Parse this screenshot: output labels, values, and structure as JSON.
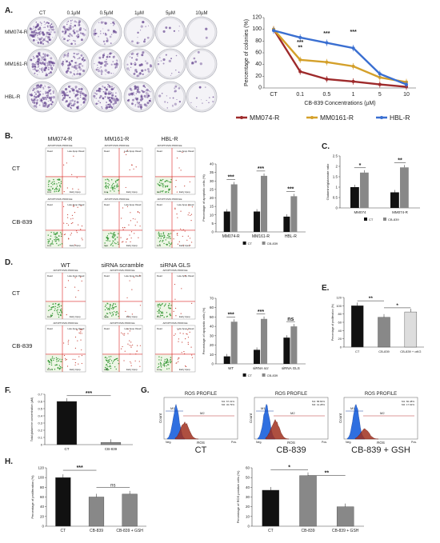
{
  "panels": {
    "A": "A.",
    "B": "B.",
    "C": "C.",
    "D": "D.",
    "E": "E.",
    "F": "F.",
    "G": "G.",
    "H": "H."
  },
  "panelA": {
    "columns": [
      "CT",
      "0.1µM",
      "0.5µM",
      "1µM",
      "5µM",
      "10µM"
    ],
    "rows": [
      "MM074-R",
      "MM161-R",
      "HBL-R"
    ],
    "plate_density": [
      [
        0.95,
        0.55,
        0.3,
        0.12,
        0.05,
        0.02
      ],
      [
        0.95,
        0.55,
        0.45,
        0.35,
        0.12,
        0.05
      ],
      [
        0.9,
        0.8,
        0.75,
        0.6,
        0.15,
        0.1
      ]
    ]
  },
  "chartA": {
    "type": "line",
    "ylabel": "Percentage of colonies (%)",
    "xlabel": "CB-839 Concentrations (µM)",
    "categories": [
      "CT",
      "0.1",
      "0.5",
      "1",
      "5",
      "10"
    ],
    "ylim": [
      0,
      120
    ],
    "yticks": [
      "0",
      "20",
      "40",
      "60",
      "80",
      "100",
      "120"
    ],
    "series": [
      {
        "name": "MM074-R",
        "color": "#9e2a2b",
        "values": [
          100,
          28,
          15,
          11,
          6,
          2
        ]
      },
      {
        "name": "MM0161-R",
        "color": "#d4a02a",
        "values": [
          100,
          48,
          44,
          37,
          18,
          10
        ]
      },
      {
        "name": "HBL-R",
        "color": "#3a6fd1",
        "values": [
          98,
          86,
          77,
          68,
          24,
          6
        ]
      }
    ],
    "stars": [
      "***",
      "**",
      "***",
      "***"
    ]
  },
  "panelB": {
    "columns": [
      "MM074-R",
      "MM161-R",
      "HBL-R"
    ],
    "rows": [
      "CT",
      "CB-839"
    ],
    "profile_title": "APOPTOSIS PROFILE",
    "q_dead": "Dead",
    "q_late": "Late Apop./Dead",
    "q_live": "Live",
    "q_early": "Early Apop.",
    "axis_x": "ANNEXIN V",
    "axis_y": "VIABILITY"
  },
  "chartB": {
    "type": "bar",
    "ylabel": "Percentage of apoptotic cells (%)",
    "categories": [
      "MM074-R",
      "MM161-R",
      "HBL-R"
    ],
    "ylim": [
      0,
      40
    ],
    "yticks": [
      "0",
      "5",
      "10",
      "15",
      "20",
      "25",
      "30",
      "35",
      "40"
    ],
    "series": [
      {
        "name": "CT",
        "color": "#111111",
        "values": [
          12,
          12,
          9
        ]
      },
      {
        "name": "CB-839",
        "color": "#888888",
        "values": [
          28,
          33,
          21
        ]
      }
    ],
    "stars": [
      "***",
      "***",
      "***"
    ]
  },
  "chartC": {
    "type": "bar",
    "ylabel": "Glutamine/glutamate ratio",
    "categories": [
      "MM074",
      "MM074-R"
    ],
    "ylim": [
      0,
      2.5
    ],
    "yticks": [
      "0",
      "0.5",
      "1",
      "1.5",
      "2",
      "2.5"
    ],
    "series": [
      {
        "name": "CT",
        "color": "#111111",
        "values": [
          1.0,
          0.75
        ]
      },
      {
        "name": "CB-839",
        "color": "#888888",
        "values": [
          1.7,
          1.95
        ]
      }
    ],
    "stars": [
      "*",
      "**"
    ]
  },
  "panelD": {
    "columns": [
      "WT",
      "siRNA scramble",
      "siRNA GLS"
    ],
    "rows": [
      "CT",
      "CB-839"
    ]
  },
  "chartD": {
    "type": "bar",
    "ylabel": "Percentage of apoptotic cells (%)",
    "categories": [
      "WT",
      "siRNA scr",
      "siRNA GLS"
    ],
    "ylim": [
      0,
      70
    ],
    "yticks": [
      "0",
      "10",
      "20",
      "30",
      "40",
      "50",
      "60",
      "70"
    ],
    "series": [
      {
        "name": "CT",
        "color": "#111111",
        "values": [
          8,
          15,
          28
        ]
      },
      {
        "name": "CB-839",
        "color": "#888888",
        "values": [
          45,
          48,
          40
        ]
      }
    ],
    "stars": [
      "***",
      "***",
      "ns"
    ]
  },
  "chartE": {
    "type": "bar",
    "ylabel": "Percentage of proliferation (%)",
    "categories": [
      "CT",
      "CB-839",
      "CB-839 + αKG"
    ],
    "ylim": [
      0,
      120
    ],
    "yticks": [
      "0",
      "20",
      "40",
      "60",
      "80",
      "100",
      "120"
    ],
    "values": [
      100,
      72,
      85
    ],
    "colors": [
      "#111111",
      "#888888",
      "#dddddd"
    ],
    "stars": [
      "**",
      "*"
    ]
  },
  "chartF": {
    "type": "bar",
    "ylabel": "Total glutamine concentration (µM)",
    "categories": [
      "CT",
      "CB-839"
    ],
    "ylim": [
      0,
      0.7
    ],
    "yticks": [
      "0",
      "0.1",
      "0.2",
      "0.3",
      "0.4",
      "0.5",
      "0.6",
      "0.7"
    ],
    "values": [
      0.6,
      0.03
    ],
    "colors": [
      "#111111",
      "#888888"
    ],
    "stars": [
      "***"
    ]
  },
  "panelG": {
    "title": "ROS PROFILE",
    "conditions": [
      "CT",
      "CB-839",
      "CB-839 + GSH"
    ],
    "ylabel": "Count",
    "xlabel": "ROS",
    "marks": [
      "Neg.",
      "Pos."
    ],
    "gates": [
      "M1",
      "M2"
    ],
    "stats": [
      [
        "M1: 67.31%",
        "M2: 32.79%"
      ],
      [
        "M1: 58.82%",
        "M2: 41.28%"
      ],
      [
        "M1: 82.48%",
        "M2: 17.62%"
      ]
    ],
    "red_shift": [
      0.55,
      0.62,
      0.35
    ]
  },
  "chartH1": {
    "type": "bar",
    "ylabel": "Percentage of proliferation (%)",
    "categories": [
      "CT",
      "CB-839",
      "CB-839 + GSH"
    ],
    "ylim": [
      0,
      120
    ],
    "yticks": [
      "0",
      "20",
      "40",
      "60",
      "80",
      "100",
      "120"
    ],
    "values": [
      100,
      60,
      66
    ],
    "colors": [
      "#111111",
      "#888888",
      "#888888"
    ],
    "stars": [
      "***",
      "ns"
    ]
  },
  "chartH2": {
    "type": "bar",
    "ylabel": "Percentage of ROS positive cells (%)",
    "categories": [
      "CT",
      "CB-839",
      "CB-839 + GSH"
    ],
    "ylim": [
      0,
      60
    ],
    "yticks": [
      "0",
      "10",
      "20",
      "30",
      "40",
      "50",
      "60"
    ],
    "values": [
      37,
      52,
      20
    ],
    "colors": [
      "#111111",
      "#888888",
      "#888888"
    ],
    "stars": [
      "*",
      "**"
    ]
  }
}
